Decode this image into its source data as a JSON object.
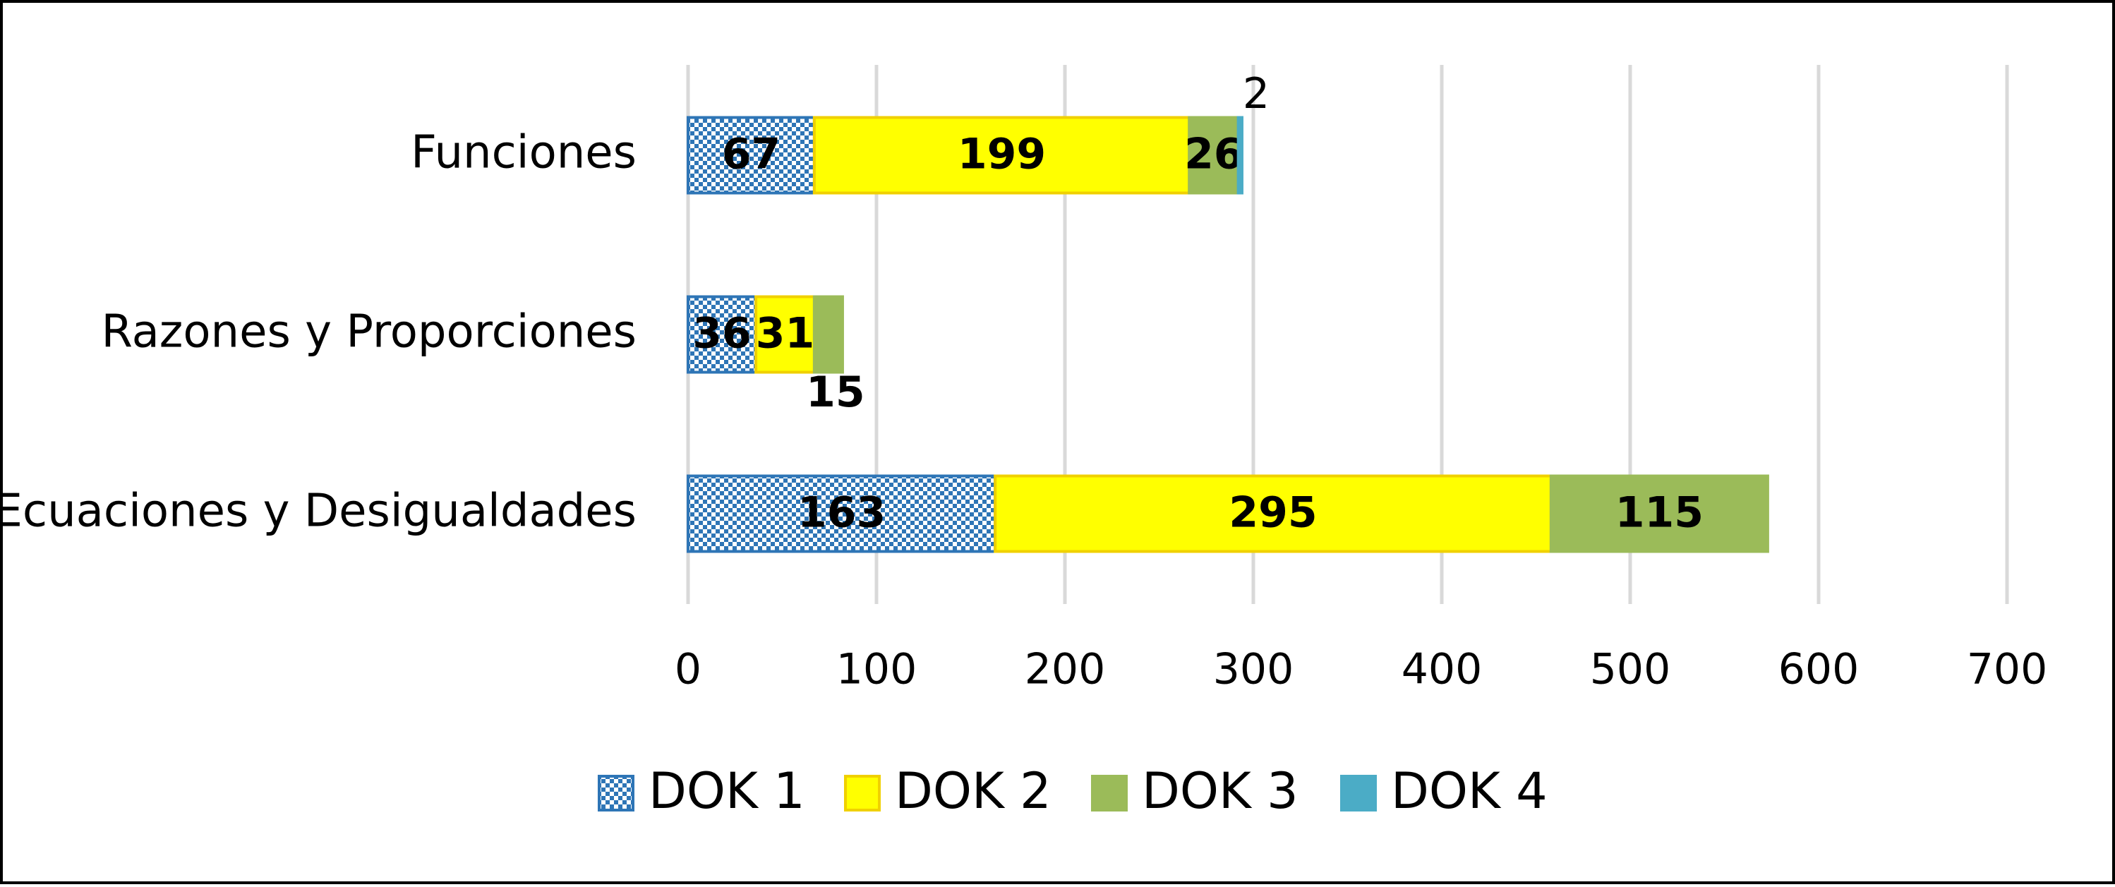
{
  "chart_data": {
    "type": "stacked-horizontal-bar",
    "categories": [
      "Funciones",
      "Razones y Proporciones",
      "Ecuaciones y Desigualdades"
    ],
    "series": [
      {
        "name": "DOK 1",
        "color": "#2e75b6",
        "pattern": "checker",
        "values": [
          67,
          36,
          163
        ]
      },
      {
        "name": "DOK 2",
        "color": "#ffff00",
        "values": [
          199,
          31,
          295
        ]
      },
      {
        "name": "DOK 3",
        "color": "#9bbb59",
        "values": [
          26,
          15,
          115
        ]
      },
      {
        "name": "DOK 4",
        "color": "#4bacc6",
        "values": [
          2,
          null,
          null
        ]
      }
    ],
    "xlim": [
      0,
      700
    ],
    "xticks": [
      0,
      100,
      200,
      300,
      400,
      500,
      600,
      700
    ],
    "grid": true,
    "legend": "bottom"
  }
}
